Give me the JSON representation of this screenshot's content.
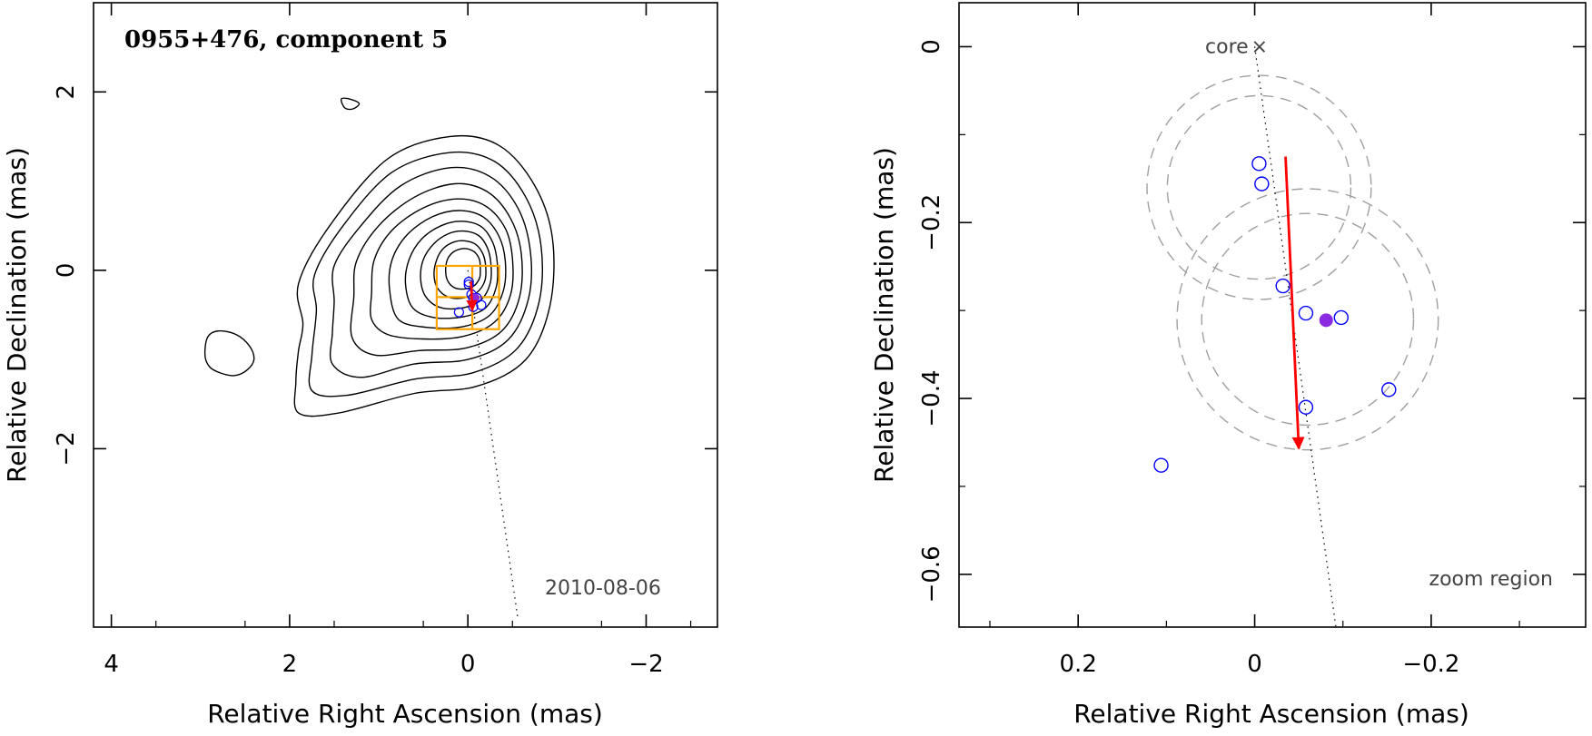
{
  "chart_data": [
    {
      "type": "contour",
      "title": "0955+476, component 5",
      "xlabel": "Relative Right Ascension (mas)",
      "ylabel": "Relative Declination (mas)",
      "xlim": [
        4.2,
        -2.8
      ],
      "ylim": [
        -4.0,
        3.0
      ],
      "xticks": [
        4,
        2,
        0,
        -2
      ],
      "yticks": [
        2,
        0,
        -2
      ],
      "date": "2010-08-06",
      "colors": {
        "contour": "#000000",
        "zoom_box": "#ffa500",
        "vector": "#ff0000",
        "points": "#0000ff",
        "mean": "#8a2be2"
      },
      "contours": [
        {
          "closed": true,
          "points": [
            [
              1.85,
              -0.6
            ],
            [
              1.9,
              -0.15
            ],
            [
              1.55,
              0.5
            ],
            [
              0.9,
              1.25
            ],
            [
              0.2,
              1.5
            ],
            [
              -0.35,
              1.4
            ],
            [
              -0.75,
              0.95
            ],
            [
              -0.95,
              0.35
            ],
            [
              -0.92,
              -0.4
            ],
            [
              -0.65,
              -1.0
            ],
            [
              -0.1,
              -1.3
            ],
            [
              0.6,
              -1.38
            ],
            [
              1.45,
              -1.6
            ],
            [
              1.9,
              -1.6
            ],
            [
              1.93,
              -1.25
            ],
            [
              1.9,
              -0.9
            ]
          ]
        },
        {
          "closed": true,
          "points": [
            [
              1.7,
              -0.45
            ],
            [
              1.72,
              -0.05
            ],
            [
              1.4,
              0.5
            ],
            [
              0.85,
              1.1
            ],
            [
              0.2,
              1.32
            ],
            [
              -0.3,
              1.22
            ],
            [
              -0.65,
              0.82
            ],
            [
              -0.82,
              0.28
            ],
            [
              -0.8,
              -0.35
            ],
            [
              -0.55,
              -0.88
            ],
            [
              -0.05,
              -1.15
            ],
            [
              0.6,
              -1.22
            ],
            [
              1.35,
              -1.4
            ],
            [
              1.75,
              -1.35
            ],
            [
              1.75,
              -0.95
            ]
          ]
        },
        {
          "closed": true,
          "points": [
            [
              1.5,
              -0.35
            ],
            [
              1.5,
              0.05
            ],
            [
              1.2,
              0.5
            ],
            [
              0.75,
              0.95
            ],
            [
              0.2,
              1.15
            ],
            [
              -0.25,
              1.05
            ],
            [
              -0.56,
              0.7
            ],
            [
              -0.7,
              0.22
            ],
            [
              -0.68,
              -0.32
            ],
            [
              -0.45,
              -0.78
            ],
            [
              0.0,
              -1.0
            ],
            [
              0.6,
              -1.05
            ],
            [
              1.2,
              -1.2
            ],
            [
              1.52,
              -1.05
            ],
            [
              1.52,
              -0.7
            ]
          ]
        },
        {
          "closed": true,
          "points": [
            [
              1.28,
              -0.3
            ],
            [
              1.25,
              0.1
            ],
            [
              1.0,
              0.5
            ],
            [
              0.6,
              0.82
            ],
            [
              0.15,
              0.97
            ],
            [
              -0.22,
              0.88
            ],
            [
              -0.48,
              0.58
            ],
            [
              -0.6,
              0.18
            ],
            [
              -0.58,
              -0.3
            ],
            [
              -0.38,
              -0.68
            ],
            [
              0.02,
              -0.87
            ],
            [
              0.55,
              -0.9
            ],
            [
              1.05,
              -0.95
            ],
            [
              1.3,
              -0.75
            ]
          ]
        },
        {
          "closed": true,
          "points": [
            [
              1.08,
              -0.25
            ],
            [
              1.05,
              0.12
            ],
            [
              0.85,
              0.45
            ],
            [
              0.5,
              0.7
            ],
            [
              0.12,
              0.8
            ],
            [
              -0.2,
              0.72
            ],
            [
              -0.42,
              0.47
            ],
            [
              -0.5,
              0.13
            ],
            [
              -0.48,
              -0.27
            ],
            [
              -0.3,
              -0.58
            ],
            [
              0.05,
              -0.74
            ],
            [
              0.5,
              -0.77
            ],
            [
              0.9,
              -0.72
            ],
            [
              1.08,
              -0.55
            ]
          ]
        },
        {
          "closed": true,
          "points": [
            [
              0.88,
              -0.2
            ],
            [
              0.85,
              0.12
            ],
            [
              0.68,
              0.4
            ],
            [
              0.4,
              0.6
            ],
            [
              0.1,
              0.67
            ],
            [
              -0.17,
              0.6
            ],
            [
              -0.35,
              0.38
            ],
            [
              -0.42,
              0.1
            ],
            [
              -0.4,
              -0.22
            ],
            [
              -0.25,
              -0.5
            ],
            [
              0.05,
              -0.63
            ],
            [
              0.45,
              -0.64
            ],
            [
              0.78,
              -0.55
            ]
          ]
        },
        {
          "closed": true,
          "points": [
            [
              0.7,
              -0.15
            ],
            [
              0.66,
              0.12
            ],
            [
              0.52,
              0.35
            ],
            [
              0.3,
              0.5
            ],
            [
              0.07,
              0.55
            ],
            [
              -0.15,
              0.49
            ],
            [
              -0.28,
              0.31
            ],
            [
              -0.33,
              0.08
            ],
            [
              -0.32,
              -0.18
            ],
            [
              -0.2,
              -0.42
            ],
            [
              0.05,
              -0.52
            ],
            [
              0.38,
              -0.53
            ],
            [
              0.62,
              -0.42
            ]
          ]
        },
        {
          "closed": true,
          "points": [
            [
              0.53,
              -0.1
            ],
            [
              0.5,
              0.12
            ],
            [
              0.38,
              0.3
            ],
            [
              0.22,
              0.41
            ],
            [
              0.05,
              0.44
            ],
            [
              -0.12,
              0.39
            ],
            [
              -0.22,
              0.25
            ],
            [
              -0.26,
              0.06
            ],
            [
              -0.25,
              -0.15
            ],
            [
              -0.15,
              -0.33
            ],
            [
              0.05,
              -0.42
            ],
            [
              0.3,
              -0.42
            ],
            [
              0.47,
              -0.3
            ]
          ]
        },
        {
          "closed": true,
          "points": [
            [
              0.38,
              -0.05
            ],
            [
              0.35,
              0.12
            ],
            [
              0.27,
              0.25
            ],
            [
              0.15,
              0.32
            ],
            [
              0.03,
              0.33
            ],
            [
              -0.09,
              0.29
            ],
            [
              -0.17,
              0.18
            ],
            [
              -0.2,
              0.04
            ],
            [
              -0.19,
              -0.12
            ],
            [
              -0.1,
              -0.25
            ],
            [
              0.05,
              -0.31
            ],
            [
              0.22,
              -0.3
            ],
            [
              0.34,
              -0.2
            ]
          ]
        },
        {
          "closed": true,
          "points": [
            [
              0.25,
              0.0
            ],
            [
              0.23,
              0.12
            ],
            [
              0.17,
              0.2
            ],
            [
              0.08,
              0.24
            ],
            [
              0.0,
              0.24
            ],
            [
              -0.08,
              0.2
            ],
            [
              -0.13,
              0.12
            ],
            [
              -0.14,
              0.02
            ],
            [
              -0.13,
              -0.09
            ],
            [
              -0.06,
              -0.18
            ],
            [
              0.05,
              -0.21
            ],
            [
              0.16,
              -0.19
            ],
            [
              0.23,
              -0.11
            ]
          ]
        },
        {
          "closed": true,
          "points": [
            [
              2.95,
              -0.95
            ],
            [
              2.92,
              -0.75
            ],
            [
              2.8,
              -0.68
            ],
            [
              2.6,
              -0.72
            ],
            [
              2.45,
              -0.85
            ],
            [
              2.4,
              -1.0
            ],
            [
              2.48,
              -1.12
            ],
            [
              2.62,
              -1.18
            ],
            [
              2.78,
              -1.15
            ],
            [
              2.9,
              -1.08
            ]
          ]
        },
        {
          "closed": true,
          "points": [
            [
              1.42,
              1.92
            ],
            [
              1.33,
              1.92
            ],
            [
              1.22,
              1.87
            ],
            [
              1.29,
              1.81
            ],
            [
              1.38,
              1.82
            ]
          ]
        }
      ],
      "zoom_box": {
        "x": [
          0.35,
          -0.35
        ],
        "y": [
          0.05,
          -0.66
        ]
      },
      "zoom_box_mid": {
        "x": -0.05,
        "y": -0.3
      },
      "jet_line": {
        "x": [
          0.0,
          -0.56
        ],
        "y": [
          0.0,
          -3.9
        ]
      },
      "points": [
        {
          "x": -0.01,
          "y": -0.13
        },
        {
          "x": -0.01,
          "y": -0.16
        },
        {
          "x": -0.04,
          "y": -0.27
        },
        {
          "x": -0.06,
          "y": -0.31
        },
        {
          "x": -0.1,
          "y": -0.31
        },
        {
          "x": -0.15,
          "y": -0.39
        },
        {
          "x": -0.06,
          "y": -0.41
        },
        {
          "x": 0.1,
          "y": -0.47
        }
      ],
      "mean_point": {
        "x": -0.08,
        "y": -0.31
      },
      "vector": {
        "x": [
          -0.035,
          -0.05
        ],
        "y": [
          -0.125,
          -0.45
        ]
      }
    },
    {
      "type": "scatter",
      "xlabel": "Relative Right Ascension (mas)",
      "ylabel": "Relative Declination (mas)",
      "xlim": [
        0.335,
        -0.375
      ],
      "ylim": [
        -0.66,
        0.05
      ],
      "xticks": [
        0.2,
        0,
        -0.2
      ],
      "xtick_labels": [
        "0.2",
        "0",
        "−0.2"
      ],
      "yticks": [
        0,
        -0.2,
        -0.4,
        -0.6
      ],
      "ytick_labels": [
        "0",
        "−0.2",
        "−0.4",
        "−0.6"
      ],
      "core_label": "core",
      "core_marker": "×",
      "zoom_label": "zoom region",
      "core": {
        "x": 0.0,
        "y": 0.0
      },
      "jet_line": {
        "x": [
          0.0,
          -0.092
        ],
        "y": [
          0.0,
          -0.66
        ]
      },
      "points": [
        {
          "x": -0.005,
          "y": -0.133
        },
        {
          "x": -0.008,
          "y": -0.156
        },
        {
          "x": -0.032,
          "y": -0.272
        },
        {
          "x": -0.058,
          "y": -0.303
        },
        {
          "x": -0.098,
          "y": -0.308
        },
        {
          "x": -0.152,
          "y": -0.39
        },
        {
          "x": -0.058,
          "y": -0.41
        },
        {
          "x": 0.106,
          "y": -0.476
        }
      ],
      "mean_point": {
        "x": -0.081,
        "y": -0.311
      },
      "vector": {
        "x": [
          -0.035,
          -0.05
        ],
        "y": [
          -0.125,
          -0.457
        ]
      },
      "circles": [
        {
          "x": -0.005,
          "y": -0.16,
          "r": 0.127
        },
        {
          "x": -0.005,
          "y": -0.16,
          "r": 0.104
        },
        {
          "x": -0.06,
          "y": -0.31,
          "r": 0.148
        },
        {
          "x": -0.06,
          "y": -0.31,
          "r": 0.12
        }
      ],
      "colors": {
        "points": "#0000ff",
        "mean": "#8a2be2",
        "vector": "#ff0000",
        "circles": "#a0a0a0"
      }
    }
  ]
}
